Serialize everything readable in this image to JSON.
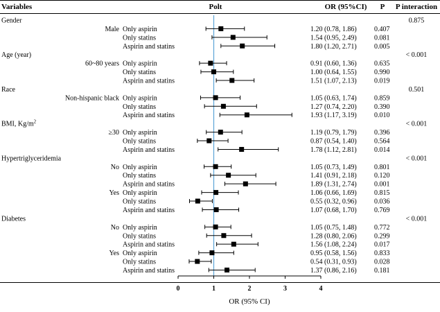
{
  "header": {
    "variables": "Variables",
    "plot": "Polt",
    "or_ci": "OR (95%CI)",
    "p": "P",
    "p_interaction": "P interaction"
  },
  "x_axis_label": "OR (95% CI)",
  "chart_data": {
    "type": "forest",
    "title": "",
    "xlabel": "OR (95% CI)",
    "xlim": [
      0,
      4
    ],
    "x_ticks": [
      "0",
      "1",
      "2",
      "3",
      "4"
    ],
    "reference_line": 1,
    "rows": [
      {
        "kind": "group",
        "label": "Gender",
        "p_interaction": "0.875"
      },
      {
        "kind": "item",
        "subgroup": "Male",
        "exposure": "Only aspirin",
        "or": 1.2,
        "lo": 0.78,
        "hi": 1.86,
        "ci_text": "1.20 (0.78, 1.86)",
        "p": "0.407"
      },
      {
        "kind": "item",
        "subgroup": "",
        "exposure": "Only statins",
        "or": 1.54,
        "lo": 0.95,
        "hi": 2.49,
        "ci_text": "1.54 (0.95, 2.49)",
        "p": "0.081"
      },
      {
        "kind": "item",
        "subgroup": "",
        "exposure": "Aspirin and statins",
        "or": 1.8,
        "lo": 1.2,
        "hi": 2.71,
        "ci_text": "1.80 (1.20, 2.71)",
        "p": "0.005"
      },
      {
        "kind": "group",
        "label": "Age (year)",
        "p_interaction": "< 0.001"
      },
      {
        "kind": "item",
        "subgroup": "60~80 years",
        "exposure": "Only aspirin",
        "or": 0.91,
        "lo": 0.6,
        "hi": 1.36,
        "ci_text": "0.91 (0.60, 1.36)",
        "p": "0.635"
      },
      {
        "kind": "item",
        "subgroup": "",
        "exposure": "Only statins",
        "or": 1.0,
        "lo": 0.64,
        "hi": 1.55,
        "ci_text": "1.00 (0.64, 1.55)",
        "p": "0.990"
      },
      {
        "kind": "item",
        "subgroup": "",
        "exposure": "Aspirin and statins",
        "or": 1.51,
        "lo": 1.07,
        "hi": 2.13,
        "ci_text": "1.51 (1.07, 2.13)",
        "p": "0.019"
      },
      {
        "kind": "group",
        "label": "Race",
        "p_interaction": "0.501"
      },
      {
        "kind": "item",
        "subgroup": "Non-hispanic black",
        "exposure": "Only aspirin",
        "or": 1.05,
        "lo": 0.63,
        "hi": 1.74,
        "ci_text": "1.05 (0.63, 1.74)",
        "p": "0.859"
      },
      {
        "kind": "item",
        "subgroup": "",
        "exposure": "Only statins",
        "or": 1.27,
        "lo": 0.74,
        "hi": 2.2,
        "ci_text": "1.27 (0.74, 2.20)",
        "p": "0.390"
      },
      {
        "kind": "item",
        "subgroup": "",
        "exposure": "Aspirin and statins",
        "or": 1.93,
        "lo": 1.17,
        "hi": 3.19,
        "ci_text": "1.93 (1.17, 3.19)",
        "p": "0.010"
      },
      {
        "kind": "group",
        "label": "BMI, Kg/m",
        "label_sup": "2",
        "p_interaction": "< 0.001"
      },
      {
        "kind": "item",
        "subgroup": "≥30",
        "exposure": "Only aspirin",
        "or": 1.19,
        "lo": 0.79,
        "hi": 1.79,
        "ci_text": "1.19 (0.79, 1.79)",
        "p": "0.396"
      },
      {
        "kind": "item",
        "subgroup": "",
        "exposure": "Only statins",
        "or": 0.87,
        "lo": 0.54,
        "hi": 1.4,
        "ci_text": "0.87 (0.54, 1.40)",
        "p": "0.564"
      },
      {
        "kind": "item",
        "subgroup": "",
        "exposure": "Aspirin and statins",
        "or": 1.78,
        "lo": 1.12,
        "hi": 2.81,
        "ci_text": "1.78 (1.12, 2.81)",
        "p": "0.014"
      },
      {
        "kind": "group",
        "label": "Hypertriglyceridemia",
        "p_interaction": "< 0.001"
      },
      {
        "kind": "item",
        "subgroup": "No",
        "exposure": "Only aspirin",
        "or": 1.05,
        "lo": 0.73,
        "hi": 1.49,
        "ci_text": "1.05 (0.73, 1.49)",
        "p": "0.801"
      },
      {
        "kind": "item",
        "subgroup": "",
        "exposure": "Only statins",
        "or": 1.41,
        "lo": 0.91,
        "hi": 2.18,
        "ci_text": "1.41 (0.91, 2.18)",
        "p": "0.120"
      },
      {
        "kind": "item",
        "subgroup": "",
        "exposure": "Aspirin and statins",
        "or": 1.89,
        "lo": 1.31,
        "hi": 2.74,
        "ci_text": "1.89 (1.31, 2.74)",
        "p": "0.001"
      },
      {
        "kind": "item",
        "subgroup": "Yes",
        "exposure": "Only aspirin",
        "or": 1.06,
        "lo": 0.66,
        "hi": 1.69,
        "ci_text": "1.06 (0.66, 1.69)",
        "p": "0.815"
      },
      {
        "kind": "item",
        "subgroup": "",
        "exposure": "Only statins",
        "or": 0.55,
        "lo": 0.32,
        "hi": 0.96,
        "ci_text": "0.55 (0.32, 0.96)",
        "p": "0.036"
      },
      {
        "kind": "item",
        "subgroup": "",
        "exposure": "Aspirin and statins",
        "or": 1.07,
        "lo": 0.68,
        "hi": 1.7,
        "ci_text": "1.07 (0.68, 1.70)",
        "p": "0.769"
      },
      {
        "kind": "group",
        "label": "Diabetes",
        "p_interaction": "< 0.001"
      },
      {
        "kind": "item",
        "subgroup": "No",
        "exposure": "Only aspirin",
        "or": 1.05,
        "lo": 0.75,
        "hi": 1.48,
        "ci_text": "1.05 (0.75, 1.48)",
        "p": "0.772"
      },
      {
        "kind": "item",
        "subgroup": "",
        "exposure": "Only statins",
        "or": 1.28,
        "lo": 0.8,
        "hi": 2.06,
        "ci_text": "1.28 (0.80, 2.06)",
        "p": "0.299"
      },
      {
        "kind": "item",
        "subgroup": "",
        "exposure": "Aspirin and statins",
        "or": 1.56,
        "lo": 1.08,
        "hi": 2.24,
        "ci_text": "1.56 (1.08, 2.24)",
        "p": "0.017"
      },
      {
        "kind": "item",
        "subgroup": "Yes",
        "exposure": "Only aspirin",
        "or": 0.95,
        "lo": 0.58,
        "hi": 1.56,
        "ci_text": "0.95 (0.58, 1.56)",
        "p": "0.833"
      },
      {
        "kind": "item",
        "subgroup": "",
        "exposure": "Only statins",
        "or": 0.54,
        "lo": 0.31,
        "hi": 0.93,
        "ci_text": "0.54 (0.31, 0.93)",
        "p": "0.028"
      },
      {
        "kind": "item",
        "subgroup": "",
        "exposure": "Aspirin and statins",
        "or": 1.37,
        "lo": 0.86,
        "hi": 2.16,
        "ci_text": "1.37 (0.86, 2.16)",
        "p": "0.181"
      }
    ]
  },
  "colors": {
    "reference_line": "#5ba3d6",
    "marker": "#000000",
    "rule": "#000000"
  }
}
